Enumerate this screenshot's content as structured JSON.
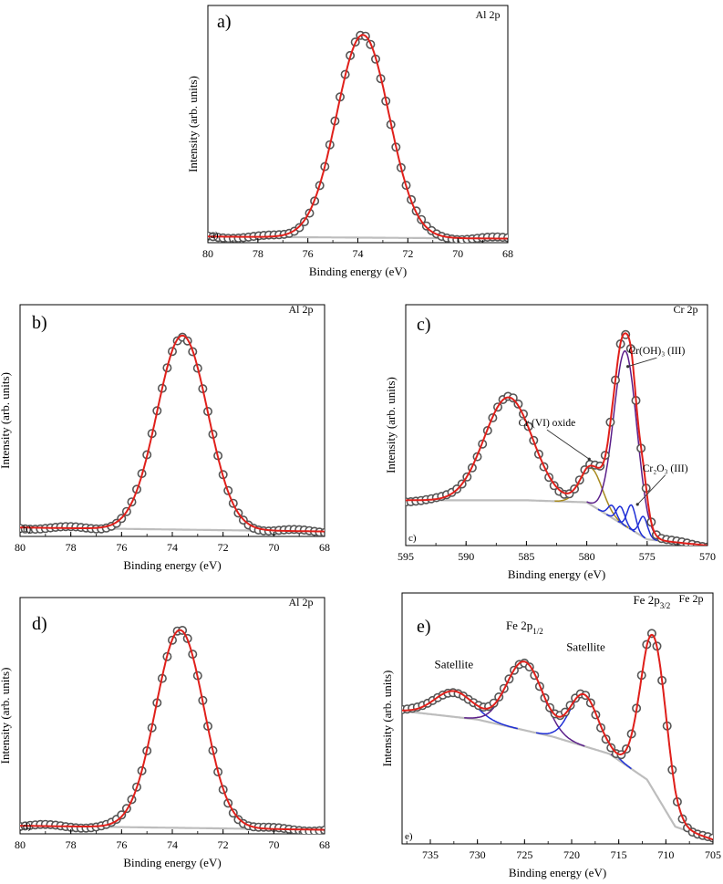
{
  "colors": {
    "fit": "#e0201b",
    "background": "#bdbdbd",
    "marker": "#555555",
    "cr_vi": "#a88a1e",
    "cr_oh": "#5b1f8a",
    "cr2o3": "#1f2fd6",
    "fe_peak": "#5b1f8a",
    "fe_sat": "#1f2fd6"
  },
  "chart_data": [
    {
      "id": "a",
      "type": "scatter",
      "panel_letter": "a)",
      "corner_label": "a)",
      "element": "Al 2p",
      "xlabel": "Binding energy (eV)",
      "ylabel": "Intensity (arb. units)",
      "xlim": [
        80,
        68
      ],
      "ylim": [
        0,
        1.1
      ],
      "xticks": [
        80,
        78,
        76,
        74,
        72,
        70,
        68
      ],
      "baseline": [
        [
          80,
          0.03
        ],
        [
          68,
          0.02
        ]
      ],
      "peaks": [
        {
          "center": 73.8,
          "height": 1.0,
          "sigma": 1.05
        }
      ],
      "annotations": []
    },
    {
      "id": "b",
      "type": "scatter",
      "panel_letter": "b)",
      "corner_label": "b)",
      "element": "Al 2p",
      "xlabel": "Binding energy (eV)",
      "ylabel": "Intensity (arb. units)",
      "xlim": [
        80,
        68
      ],
      "ylim": [
        0,
        1.1
      ],
      "xticks": [
        80,
        78,
        76,
        74,
        72,
        70,
        68
      ],
      "baseline": [
        [
          80,
          0.045
        ],
        [
          68,
          0.025
        ]
      ],
      "peaks": [
        {
          "center": 73.6,
          "height": 0.98,
          "sigma": 1.0
        }
      ],
      "annotations": []
    },
    {
      "id": "c",
      "type": "scatter",
      "panel_letter": "c)",
      "corner_label": "c)",
      "element": "Cr 2p",
      "xlabel": "Binding energy (eV)",
      "ylabel": "Intensity (arb. units)",
      "xlim": [
        595,
        570
      ],
      "ylim": [
        0,
        1.1
      ],
      "xticks": [
        595,
        590,
        585,
        580,
        575,
        570
      ],
      "baseline": [
        [
          595,
          0.22
        ],
        [
          585,
          0.22
        ],
        [
          580,
          0.21
        ],
        [
          575,
          0.03
        ],
        [
          570,
          0.0
        ]
      ],
      "peaks": [
        {
          "center": 586.5,
          "height": 0.5,
          "sigma": 2.0,
          "component": ""
        },
        {
          "center": 579.6,
          "height": 0.18,
          "sigma": 0.9,
          "component": "cr_vi"
        },
        {
          "center": 576.8,
          "height": 0.85,
          "sigma": 0.95,
          "component": "cr_oh"
        },
        {
          "center": 577.9,
          "height": 0.06,
          "sigma": 0.35,
          "component": "cr2o3"
        },
        {
          "center": 577.2,
          "height": 0.08,
          "sigma": 0.35,
          "component": "cr2o3"
        },
        {
          "center": 576.3,
          "height": 0.12,
          "sigma": 0.35,
          "component": "cr2o3"
        },
        {
          "center": 575.3,
          "height": 0.1,
          "sigma": 0.35,
          "component": "cr2o3"
        }
      ],
      "annotations": [
        {
          "text": "Cr (VI) oxide",
          "x": 583.3,
          "y": 0.58,
          "ax": 579.8,
          "ay": 0.42
        },
        {
          "text": "Cr(OH)₃ (III)",
          "x": 574.2,
          "y": 0.93,
          "ax": 576.6,
          "ay": 0.87
        },
        {
          "text": "Cr₂O₃ (III)",
          "x": 573.5,
          "y": 0.36,
          "ax": 575.8,
          "ay": 0.2
        }
      ]
    },
    {
      "id": "d",
      "type": "scatter",
      "panel_letter": "d)",
      "corner_label": "d)",
      "element": "Al 2p",
      "xlabel": "Binding energy (eV)",
      "ylabel": "Intensity (arb. units)",
      "xlim": [
        80,
        68
      ],
      "ylim": [
        0,
        1.1
      ],
      "xticks": [
        80,
        78,
        76,
        74,
        72,
        70,
        68
      ],
      "baseline": [
        [
          80,
          0.04
        ],
        [
          68,
          0.02
        ]
      ],
      "peaks": [
        {
          "center": 73.7,
          "height": 0.98,
          "sigma": 0.95
        }
      ],
      "annotations": []
    },
    {
      "id": "e",
      "type": "scatter",
      "panel_letter": "e)",
      "corner_label": "e)",
      "element": "Fe 2p",
      "xlabel": "Binding energy (eV)",
      "ylabel": "Intensity (arb. units)",
      "xlim": [
        738,
        705
      ],
      "ylim": [
        0,
        1.1
      ],
      "xticks": [
        735,
        730,
        725,
        720,
        715,
        710,
        705
      ],
      "baseline": [
        [
          738,
          0.62
        ],
        [
          730,
          0.58
        ],
        [
          722,
          0.5
        ],
        [
          716,
          0.42
        ],
        [
          712,
          0.3
        ],
        [
          709,
          0.08
        ],
        [
          705,
          0.02
        ]
      ],
      "peaks": [
        {
          "center": 732.5,
          "height": 0.12,
          "sigma": 2.0,
          "component": "fe_sat"
        },
        {
          "center": 725.0,
          "height": 0.32,
          "sigma": 1.9,
          "component": "fe_peak"
        },
        {
          "center": 718.7,
          "height": 0.24,
          "sigma": 1.5,
          "component": "fe_sat"
        },
        {
          "center": 711.3,
          "height": 0.72,
          "sigma": 1.35,
          "component": "fe_peak"
        }
      ],
      "annotations": [
        {
          "text": "Satellite",
          "x": 732.5,
          "y": 0.82
        },
        {
          "text": "Fe 2p",
          "sub": "1/2",
          "x": 725.0,
          "y": 1.0
        },
        {
          "text": "Satellite",
          "x": 718.5,
          "y": 0.9
        },
        {
          "text": "Fe 2p",
          "sub": "3/2",
          "x": 711.5,
          "y": 1.12
        }
      ]
    }
  ]
}
